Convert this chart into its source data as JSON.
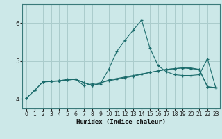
{
  "title": "",
  "xlabel": "Humidex (Indice chaleur)",
  "background_color": "#cce8e8",
  "grid_color": "#aacccc",
  "line_color": "#1a6b6b",
  "xlim": [
    -0.5,
    23.5
  ],
  "ylim": [
    3.75,
    6.5
  ],
  "yticks": [
    4,
    5,
    6
  ],
  "xticks": [
    0,
    1,
    2,
    3,
    4,
    5,
    6,
    7,
    8,
    9,
    10,
    11,
    12,
    13,
    14,
    15,
    16,
    17,
    18,
    19,
    20,
    21,
    22,
    23
  ],
  "line1_x": [
    0,
    1,
    2,
    3,
    4,
    5,
    6,
    7,
    8,
    9,
    10,
    11,
    12,
    13,
    14,
    15,
    16,
    17,
    18,
    19,
    20,
    21,
    22,
    23
  ],
  "line1_y": [
    4.02,
    4.22,
    4.45,
    4.46,
    4.47,
    4.5,
    4.52,
    4.35,
    4.4,
    4.43,
    4.48,
    4.52,
    4.56,
    4.6,
    4.65,
    4.7,
    4.74,
    4.78,
    4.8,
    4.82,
    4.8,
    4.78,
    4.32,
    4.3
  ],
  "line2_x": [
    0,
    1,
    2,
    3,
    4,
    5,
    6,
    7,
    8,
    9,
    10,
    11,
    12,
    13,
    14,
    15,
    16,
    17,
    18,
    19,
    20,
    21,
    22,
    23
  ],
  "line2_y": [
    4.02,
    4.22,
    4.45,
    4.47,
    4.48,
    4.5,
    4.52,
    4.43,
    4.36,
    4.4,
    4.78,
    5.26,
    5.55,
    5.82,
    6.08,
    5.35,
    4.88,
    4.72,
    4.64,
    4.62,
    4.62,
    4.64,
    5.06,
    4.3
  ],
  "line3_x": [
    2,
    3,
    4,
    5,
    6,
    7,
    8,
    9,
    10,
    11,
    12,
    13,
    14,
    15,
    16,
    17,
    18,
    19,
    20,
    21,
    22,
    23
  ],
  "line3_y": [
    4.45,
    4.46,
    4.48,
    4.52,
    4.52,
    4.43,
    4.35,
    4.42,
    4.5,
    4.54,
    4.58,
    4.62,
    4.66,
    4.7,
    4.74,
    4.78,
    4.8,
    4.82,
    4.82,
    4.78,
    4.32,
    4.3
  ]
}
